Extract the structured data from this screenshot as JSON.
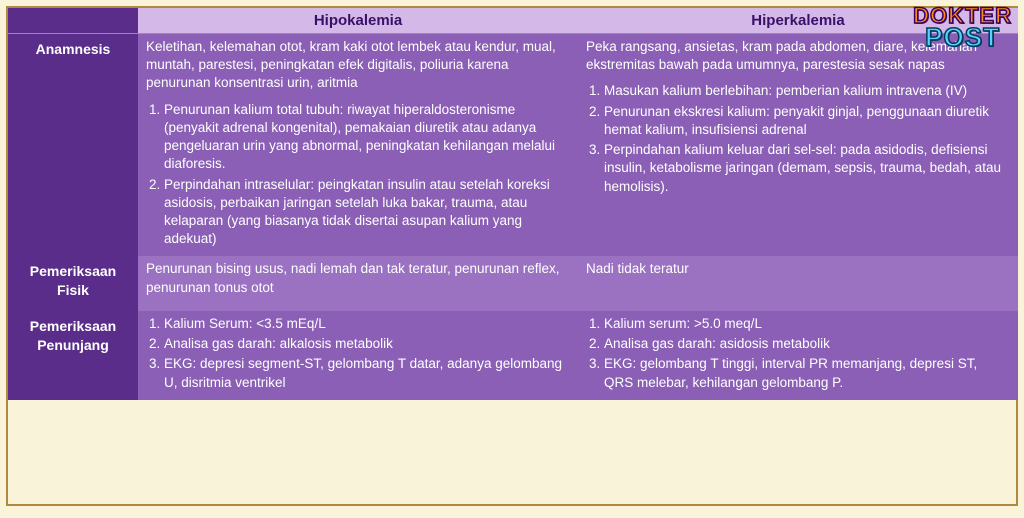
{
  "logo": {
    "line1": "DOKTER",
    "line2": "POST"
  },
  "headers": {
    "blank": "",
    "col1": "Hipokalemia",
    "col2": "Hiperkalemia"
  },
  "rows": [
    {
      "head": "Anamnesis",
      "col1": {
        "intro": "Keletihan, kelemahan otot, kram kaki otot lembek atau kendur, mual, muntah, parestesi, peningkatan efek digitalis, poliuria karena penurunan konsentrasi urin, aritmia",
        "list": [
          "Penurunan kalium total tubuh: riwayat hiperaldosteronisme (penyakit adrenal kongenital), pemakaian diuretik atau adanya pengeluaran urin yang abnormal, peningkatan kehilangan melalui diaforesis.",
          "Perpindahan intraselular: peingkatan insulin atau setelah koreksi asidosis, perbaikan jaringan setelah luka bakar, trauma, atau kelaparan (yang biasanya tidak disertai asupan kalium yang adekuat)"
        ]
      },
      "col2": {
        "intro": "Peka rangsang, ansietas, kram pada abdomen, diare, kelemahan ekstremitas bawah pada umumnya, parestesia sesak napas",
        "list": [
          "Masukan kalium berlebihan: pemberian kalium intravena (IV)",
          "Penurunan ekskresi kalium: penyakit ginjal, penggunaan diuretik hemat kalium, insufisiensi adrenal",
          "Perpindahan kalium keluar dari sel-sel: pada asidodis, defisiensi insulin, ketabolisme jaringan (demam, sepsis, trauma, bedah, atau hemolisis)."
        ]
      }
    },
    {
      "head": "Pemeriksaan Fisik",
      "col1": {
        "intro": "Penurunan bising usus, nadi lemah dan tak teratur, penurunan reflex, penurunan tonus otot",
        "list": []
      },
      "col2": {
        "intro": "Nadi tidak teratur",
        "list": []
      }
    },
    {
      "head": "Pemeriksaan Penunjang",
      "col1": {
        "intro": "",
        "list": [
          "Kalium Serum: <3.5 mEq/L",
          "Analisa gas darah: alkalosis metabolik",
          "EKG: depresi segment-ST, gelombang T datar, adanya gelombang U, disritmia ventrikel"
        ]
      },
      "col2": {
        "intro": "",
        "list": [
          "Kalium serum: >5.0 meq/L",
          "Analisa gas darah: asidosis metabolik",
          "EKG: gelombang T tinggi, interval PR memanjang, depresi ST, QRS melebar, kehilangan gelombang P."
        ]
      }
    }
  ]
}
